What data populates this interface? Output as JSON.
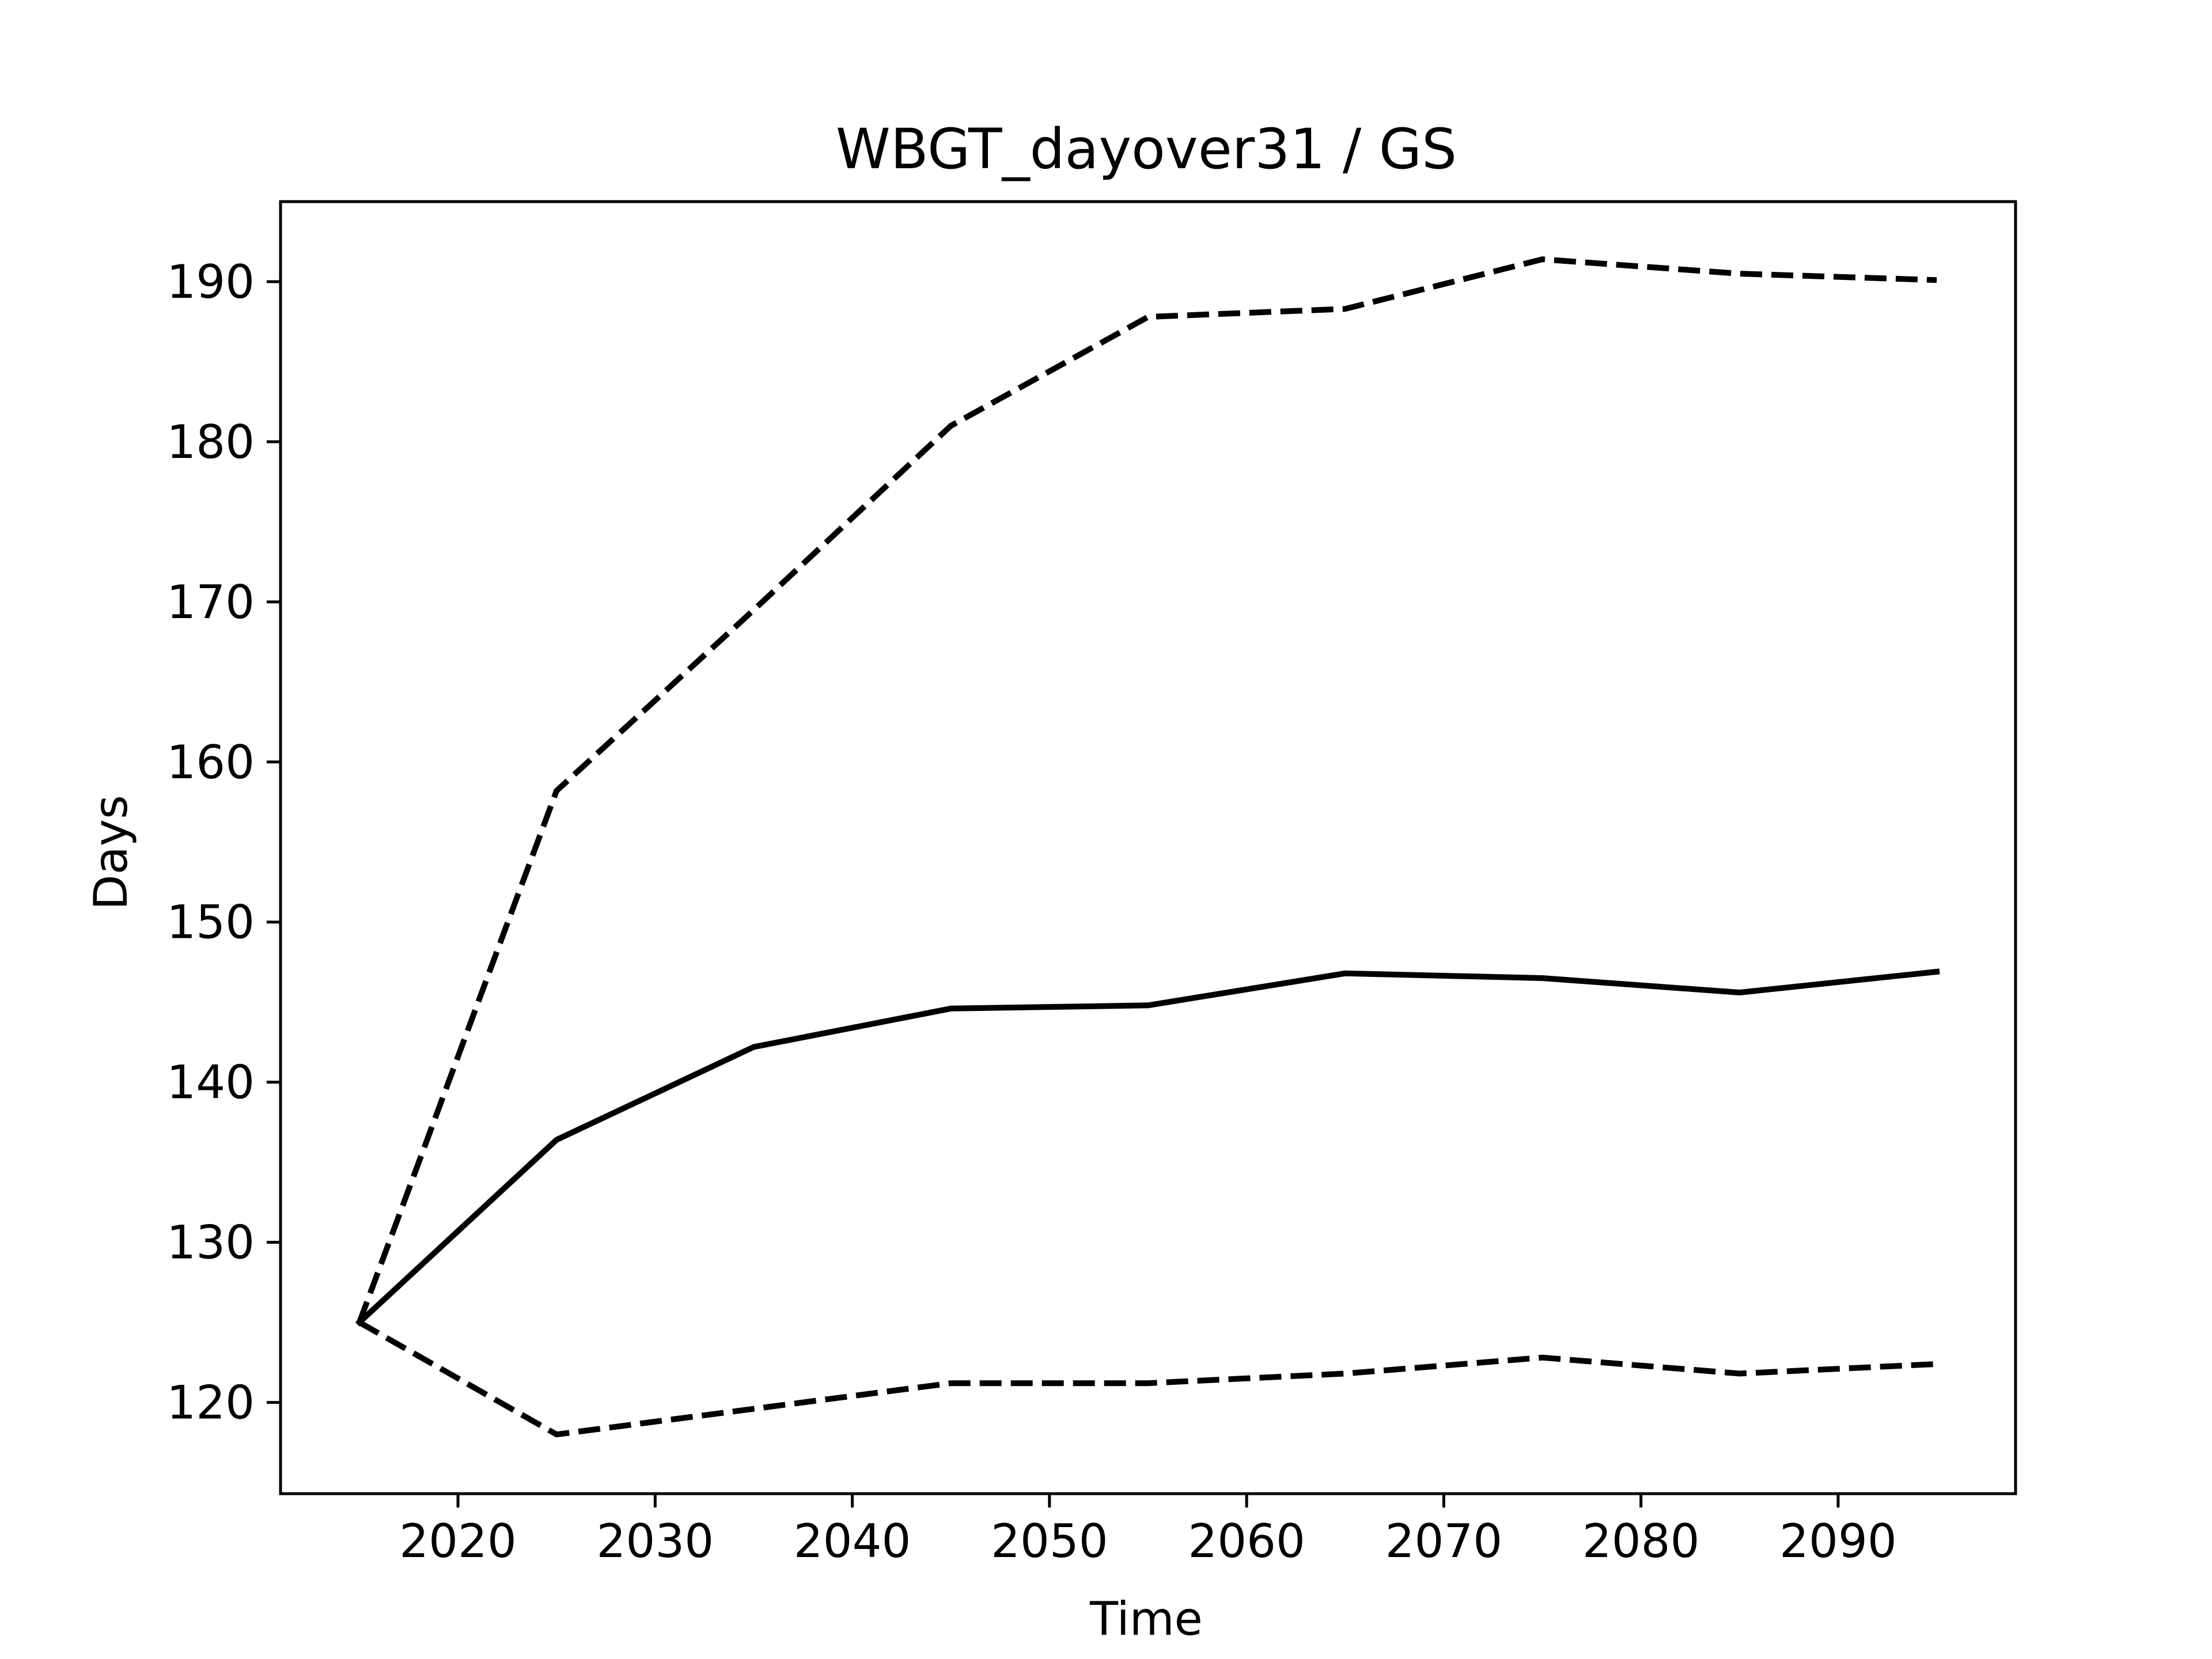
{
  "chart_data": {
    "type": "line",
    "title": "WBGT_dayover31 / GS",
    "xlabel": "Time",
    "ylabel": "Days",
    "x": [
      2015,
      2025,
      2035,
      2045,
      2055,
      2065,
      2075,
      2085,
      2095
    ],
    "xlim": [
      2011,
      2099
    ],
    "ylim": [
      114.3,
      195
    ],
    "xticks": [
      2020,
      2030,
      2040,
      2050,
      2060,
      2070,
      2080,
      2090
    ],
    "yticks": [
      120,
      130,
      140,
      150,
      160,
      170,
      180,
      190
    ],
    "grid": false,
    "legend": "none",
    "series": [
      {
        "style": "solid",
        "color": "#000000",
        "values": [
          125.0,
          136.4,
          142.2,
          144.6,
          144.8,
          146.8,
          146.5,
          145.6,
          146.9
        ]
      },
      {
        "style": "dashed",
        "color": "#000000",
        "values": [
          125.0,
          158.2,
          169.5,
          181.0,
          187.8,
          188.3,
          191.4,
          190.5,
          190.1
        ]
      },
      {
        "style": "dashed",
        "color": "#000000",
        "values": [
          125.0,
          118.0,
          119.6,
          121.2,
          121.2,
          121.8,
          122.8,
          121.8,
          122.4
        ]
      }
    ]
  }
}
